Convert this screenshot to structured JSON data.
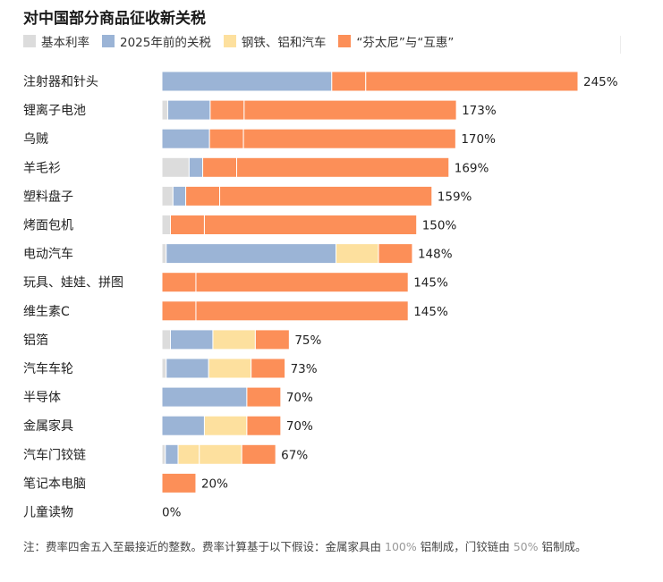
{
  "chart_data": {
    "type": "bar",
    "orientation": "horizontal",
    "stacked": true,
    "title": "对中国部分商品征收新关税",
    "legend_position": "top",
    "xlim": [
      0,
      245
    ],
    "grid": false,
    "colors": {
      "base": "#dcdcdc",
      "pre2025": "#9bb4d6",
      "steel": "#fde09e",
      "fentanyl": "#fc8f58"
    },
    "legend": [
      {
        "key": "base",
        "label": "基本利率"
      },
      {
        "key": "pre2025",
        "label": "2025年前的关税"
      },
      {
        "key": "steel",
        "label": "钢铁、铝和汽车"
      },
      {
        "key": "fentanyl",
        "label": "“芬太尼”与“互惠”"
      }
    ],
    "rows": [
      {
        "category": "注射器和针头",
        "label": "245%",
        "segments": [
          {
            "key": "base",
            "value": 0
          },
          {
            "key": "pre2025",
            "value": 100
          },
          {
            "key": "fentanyl",
            "value": 20
          },
          {
            "key": "fentanyl",
            "value": 125
          }
        ]
      },
      {
        "category": "锂离子电池",
        "label": "173%",
        "segments": [
          {
            "key": "base",
            "value": 3.4
          },
          {
            "key": "pre2025",
            "value": 25
          },
          {
            "key": "fentanyl",
            "value": 20
          },
          {
            "key": "fentanyl",
            "value": 125
          }
        ]
      },
      {
        "category": "乌贼",
        "label": "170%",
        "segments": [
          {
            "key": "base",
            "value": 0
          },
          {
            "key": "pre2025",
            "value": 28
          },
          {
            "key": "fentanyl",
            "value": 20
          },
          {
            "key": "fentanyl",
            "value": 125
          }
        ]
      },
      {
        "category": "羊毛衫",
        "label": "169%",
        "segments": [
          {
            "key": "base",
            "value": 16
          },
          {
            "key": "pre2025",
            "value": 8
          },
          {
            "key": "fentanyl",
            "value": 20
          },
          {
            "key": "fentanyl",
            "value": 125
          }
        ]
      },
      {
        "category": "塑料盘子",
        "label": "159%",
        "segments": [
          {
            "key": "base",
            "value": 6.5
          },
          {
            "key": "pre2025",
            "value": 7.5
          },
          {
            "key": "fentanyl",
            "value": 20
          },
          {
            "key": "fentanyl",
            "value": 125
          }
        ]
      },
      {
        "category": "烤面包机",
        "label": "150%",
        "segments": [
          {
            "key": "base",
            "value": 5
          },
          {
            "key": "pre2025",
            "value": 0
          },
          {
            "key": "fentanyl",
            "value": 20
          },
          {
            "key": "fentanyl",
            "value": 125
          }
        ]
      },
      {
        "category": "电动汽车",
        "label": "148%",
        "segments": [
          {
            "key": "base",
            "value": 2.5
          },
          {
            "key": "pre2025",
            "value": 100
          },
          {
            "key": "steel",
            "value": 25
          },
          {
            "key": "fentanyl",
            "value": 20
          }
        ]
      },
      {
        "category": "玩具、娃娃、拼图",
        "label": "145%",
        "segments": [
          {
            "key": "base",
            "value": 0
          },
          {
            "key": "pre2025",
            "value": 0
          },
          {
            "key": "fentanyl",
            "value": 20
          },
          {
            "key": "fentanyl",
            "value": 125
          }
        ]
      },
      {
        "category": "维生素C",
        "label": "145%",
        "segments": [
          {
            "key": "base",
            "value": 0
          },
          {
            "key": "pre2025",
            "value": 0
          },
          {
            "key": "fentanyl",
            "value": 20
          },
          {
            "key": "fentanyl",
            "value": 125
          }
        ]
      },
      {
        "category": "铝箔",
        "label": "75%",
        "segments": [
          {
            "key": "base",
            "value": 5
          },
          {
            "key": "pre2025",
            "value": 25
          },
          {
            "key": "steel",
            "value": 25
          },
          {
            "key": "fentanyl",
            "value": 20
          }
        ]
      },
      {
        "category": "汽车车轮",
        "label": "73%",
        "segments": [
          {
            "key": "base",
            "value": 2.5
          },
          {
            "key": "pre2025",
            "value": 25
          },
          {
            "key": "steel",
            "value": 25
          },
          {
            "key": "fentanyl",
            "value": 20
          }
        ]
      },
      {
        "category": "半导体",
        "label": "70%",
        "segments": [
          {
            "key": "base",
            "value": 0
          },
          {
            "key": "pre2025",
            "value": 50
          },
          {
            "key": "fentanyl",
            "value": 20
          }
        ]
      },
      {
        "category": "金属家具",
        "label": "70%",
        "segments": [
          {
            "key": "base",
            "value": 0
          },
          {
            "key": "pre2025",
            "value": 25
          },
          {
            "key": "steel",
            "value": 25
          },
          {
            "key": "fentanyl",
            "value": 20
          }
        ]
      },
      {
        "category": "汽车门铰链",
        "label": "67%",
        "segments": [
          {
            "key": "base",
            "value": 2
          },
          {
            "key": "pre2025",
            "value": 7.5
          },
          {
            "key": "steel",
            "value": 12.5
          },
          {
            "key": "steel",
            "value": 25
          },
          {
            "key": "fentanyl",
            "value": 20
          }
        ]
      },
      {
        "category": "笔记本电脑",
        "label": "20%",
        "segments": [
          {
            "key": "base",
            "value": 0
          },
          {
            "key": "pre2025",
            "value": 0
          },
          {
            "key": "fentanyl",
            "value": 20
          }
        ]
      },
      {
        "category": "儿童读物",
        "label": "0%",
        "segments": []
      }
    ]
  },
  "note": {
    "prefix": "注：费率四舍五入至最接近的整数。费率计算基于以下假设：金属家具由",
    "pct1": "100%",
    "middle": "铝制成，门铰链由",
    "pct2": "50%",
    "suffix": "铝制成。"
  }
}
